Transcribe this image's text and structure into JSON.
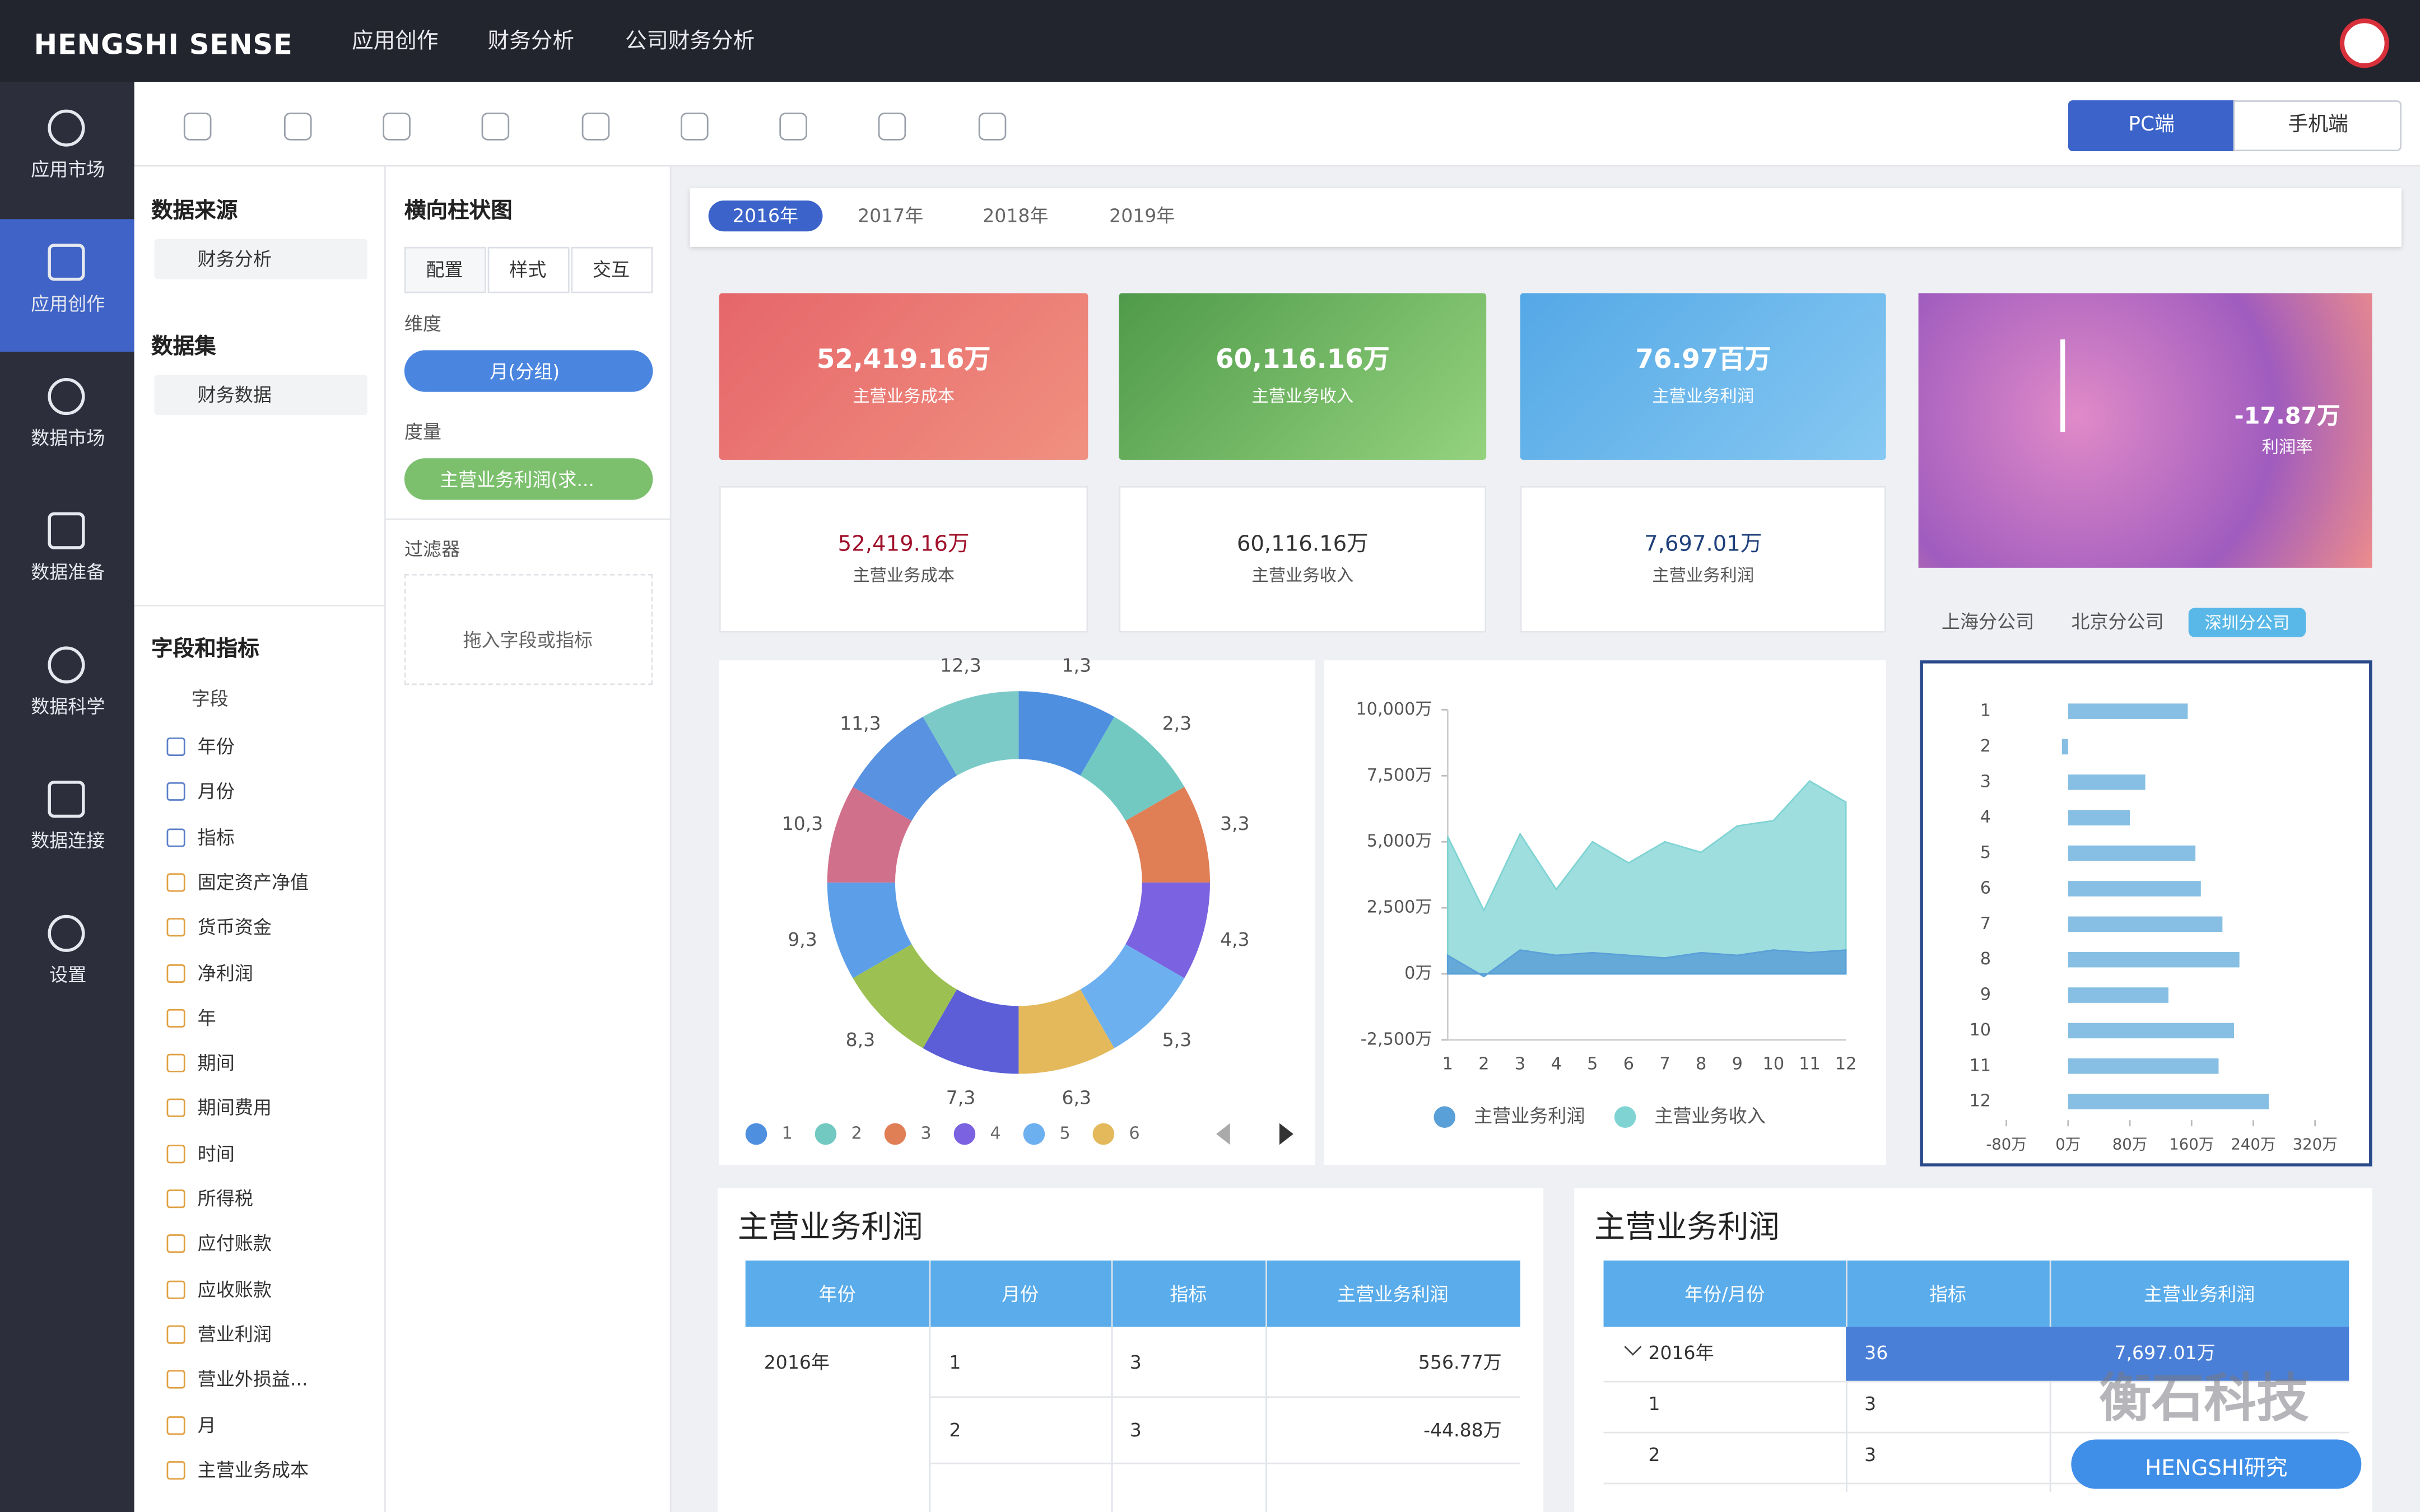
{
  "header": {
    "brand": "HENGSHI SENSE",
    "breadcrumb": [
      "应用创作",
      "财务分析",
      "公司财务分析"
    ],
    "view_modes": [
      "PC端",
      "手机端"
    ]
  },
  "nav": [
    "应用市场",
    "应用创作",
    "数据市场",
    "数据准备",
    "数据科学",
    "数据连接",
    "设置"
  ],
  "data_panel": {
    "source_title": "数据来源",
    "source": "财务分析",
    "dataset_title": "数据集",
    "dataset": "财务数据",
    "fields_title": "字段和指标",
    "group": "字段",
    "fields": [
      "年份",
      "月份",
      "指标",
      "固定资产净值",
      "货币资金",
      "净利润",
      "年",
      "期间",
      "期间费用",
      "时间",
      "所得税",
      "应付账款",
      "应收账款",
      "营业利润",
      "营业外损益...",
      "月",
      "主营业务成本"
    ]
  },
  "config_panel": {
    "title": "横向柱状图",
    "tabs": [
      "配置",
      "样式",
      "交互"
    ],
    "dimension_label": "维度",
    "dimension": "月(分组)",
    "measure_label": "度量",
    "measure": "主营业务利润(求...",
    "filter_label": "过滤器",
    "filter_hint": "拖入字段或指标"
  },
  "year_tabs": [
    "2016年",
    "2017年",
    "2018年",
    "2019年"
  ],
  "kpis": [
    {
      "value": "52,419.16万",
      "label": "主营业务成本"
    },
    {
      "value": "60,116.16万",
      "label": "主营业务收入"
    },
    {
      "value": "76.97百万",
      "label": "主营业务利润"
    },
    {
      "value": "-17.87万",
      "label": "利润率"
    }
  ],
  "kpis2": [
    {
      "value": "52,419.16万",
      "label": "主营业务成本"
    },
    {
      "value": "60,116.16万",
      "label": "主营业务收入"
    },
    {
      "value": "7,697.01万",
      "label": "主营业务利润"
    }
  ],
  "company_filter": {
    "options": [
      "上海分公司",
      "北京分公司"
    ],
    "active": "深圳分公司"
  },
  "donut": {
    "type": "pie",
    "values": [
      3,
      3,
      3,
      3,
      3,
      3,
      3,
      3,
      3,
      3,
      3,
      3
    ],
    "value_labels": [
      "1,3",
      "2,3",
      "3,3",
      "4,3",
      "5,3",
      "6,3",
      "7,3",
      "8,3",
      "9,3",
      "10,3",
      "11,3",
      "12,3"
    ],
    "colors": [
      "#4f8fe0",
      "#72c9c2",
      "#e07e56",
      "#7b62e0",
      "#6db0f0",
      "#e3b95c",
      "#5b5ed6",
      "#9cc152",
      "#5c9fe8",
      "#d0708b",
      "#5892e0",
      "#7bcac8"
    ],
    "legend": [
      "1",
      "2",
      "3",
      "4",
      "5",
      "6"
    ]
  },
  "area_chart": {
    "type": "area",
    "categories": [
      "1",
      "2",
      "3",
      "4",
      "5",
      "6",
      "7",
      "8",
      "9",
      "10",
      "11",
      "12"
    ],
    "series": [
      {
        "name": "主营业务利润",
        "color": "#5aa0d8",
        "values": [
          700,
          -100,
          900,
          700,
          800,
          700,
          600,
          800,
          700,
          900,
          800,
          900
        ]
      },
      {
        "name": "主营业务收入",
        "color": "#7fd3d3",
        "values": [
          5200,
          2400,
          5300,
          3200,
          5000,
          4200,
          5000,
          4600,
          5600,
          5800,
          7300,
          6500
        ]
      }
    ],
    "ylim": [
      -2500,
      10000
    ],
    "yticks": [
      {
        "value": 10000,
        "label": "10,000万"
      },
      {
        "value": 7500,
        "label": "7,500万"
      },
      {
        "value": 5000,
        "label": "5,000万"
      },
      {
        "value": 2500,
        "label": "2,500万"
      },
      {
        "value": 0,
        "label": "0万"
      },
      {
        "value": -2500,
        "label": "-2,500万"
      }
    ]
  },
  "bar_chart": {
    "type": "bar",
    "orientation": "horizontal",
    "categories": [
      "1",
      "2",
      "3",
      "4",
      "5",
      "6",
      "7",
      "8",
      "9",
      "10",
      "11",
      "12"
    ],
    "values": [
      155,
      -8,
      100,
      80,
      165,
      172,
      200,
      222,
      130,
      215,
      195,
      260
    ],
    "color": "#86bfe3",
    "xlim": [
      -100,
      350
    ],
    "xticks": [
      {
        "value": -80,
        "label": "-80万"
      },
      {
        "value": 0,
        "label": "0万"
      },
      {
        "value": 80,
        "label": "80万"
      },
      {
        "value": 160,
        "label": "160万"
      },
      {
        "value": 240,
        "label": "240万"
      },
      {
        "value": 320,
        "label": "320万"
      }
    ]
  },
  "tables": [
    {
      "title": "主营业务利润",
      "headers": [
        "年份",
        "月份",
        "指标",
        "主营业务利润"
      ],
      "year": "2016年",
      "rows": [
        {
          "month": "1",
          "count": "3",
          "value": "556.77万"
        },
        {
          "month": "2",
          "count": "3",
          "value": "-44.88万"
        }
      ]
    },
    {
      "title": "主营业务利润",
      "headers": [
        "年份/月份",
        "指标",
        "主营业务利润"
      ],
      "rows": [
        {
          "label": "2016年",
          "count": "36",
          "value": "7,697.01万"
        },
        {
          "label": "1",
          "count": "3"
        },
        {
          "label": "2",
          "count": "3"
        }
      ]
    }
  ],
  "watermark": "衡石科技",
  "help_button": "HENGSHI研究"
}
